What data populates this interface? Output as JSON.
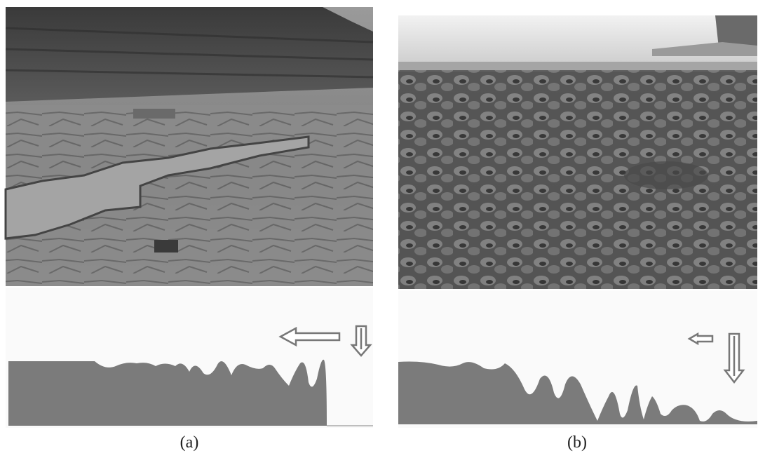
{
  "labels": {
    "a": "(a)",
    "b": "(b)"
  }
}
